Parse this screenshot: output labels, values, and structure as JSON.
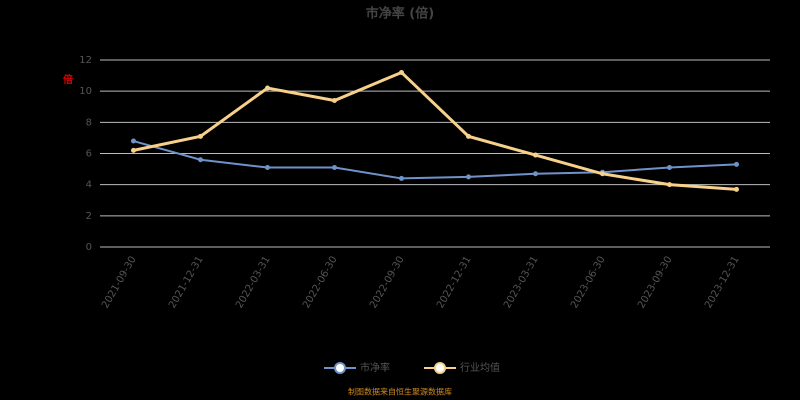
{
  "chart_data": {
    "type": "line",
    "title": "市净率 (倍)",
    "y_unit": "倍",
    "categories": [
      "2021-09-30",
      "2021-12-31",
      "2022-03-31",
      "2022-06-30",
      "2022-09-30",
      "2022-12-31",
      "2023-03-31",
      "2023-06-30",
      "2023-09-30",
      "2023-12-31"
    ],
    "series": [
      {
        "name": "市净率",
        "color": "#6f93c9",
        "values": [
          6.8,
          5.6,
          5.1,
          5.1,
          4.4,
          4.5,
          4.7,
          4.8,
          5.1,
          5.3
        ]
      },
      {
        "name": "行业均值",
        "color": "#f7d08a",
        "values": [
          6.2,
          7.1,
          10.2,
          9.4,
          11.2,
          7.1,
          5.9,
          4.7,
          4.0,
          3.7
        ]
      }
    ],
    "ylim": [
      0,
      12
    ],
    "yticks": [
      0,
      2,
      4,
      6,
      8,
      10,
      12
    ],
    "grid": true,
    "legend": "bottom",
    "source": "制图数据来自恒生聚源数据库"
  }
}
